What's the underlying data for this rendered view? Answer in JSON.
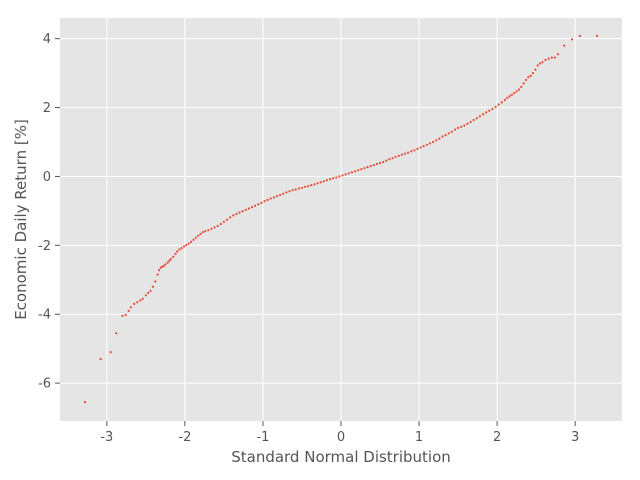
{
  "chart_data": {
    "type": "scatter",
    "title": "",
    "xlabel": "Standard Normal Distribution",
    "ylabel": "Economic Daily Return [%]",
    "xlim": [
      -3.6,
      3.6
    ],
    "ylim": [
      -7.1,
      4.6
    ],
    "xticks": [
      -3,
      -2,
      -1,
      0,
      1,
      2,
      3
    ],
    "yticks": [
      -6,
      -4,
      -2,
      0,
      2,
      4
    ],
    "grid": true,
    "legend": "none",
    "colors": {
      "background": "#e5e5e5",
      "grid": "#ffffff",
      "points": "#e24a33",
      "text": "#555555"
    },
    "series": [
      {
        "name": "",
        "x": [
          -3.28,
          -3.08,
          -2.95,
          -2.88,
          -2.8,
          -2.76,
          -2.72,
          -2.69,
          -2.65,
          -2.61,
          -2.57,
          -2.54,
          -2.5,
          -2.47,
          -2.44,
          -2.41,
          -2.38,
          -2.35,
          -2.33,
          -2.31,
          -2.29,
          -2.27,
          -2.25,
          -2.22,
          -2.2,
          -2.18,
          -2.15,
          -2.12,
          -2.1,
          -2.07,
          -2.04,
          -2.01,
          -1.98,
          -1.95,
          -1.92,
          -1.89,
          -1.86,
          -1.83,
          -1.8,
          -1.77,
          -1.74,
          -1.7,
          -1.66,
          -1.62,
          -1.58,
          -1.54,
          -1.5,
          -1.46,
          -1.42,
          -1.38,
          -1.34,
          -1.3,
          -1.26,
          -1.22,
          -1.18,
          -1.14,
          -1.1,
          -1.06,
          -1.02,
          -0.98,
          -0.94,
          -0.9,
          -0.86,
          -0.82,
          -0.78,
          -0.74,
          -0.7,
          -0.66,
          -0.62,
          -0.58,
          -0.54,
          -0.5,
          -0.46,
          -0.42,
          -0.38,
          -0.34,
          -0.3,
          -0.26,
          -0.22,
          -0.18,
          -0.14,
          -0.1,
          -0.06,
          -0.02,
          0.02,
          0.06,
          0.1,
          0.14,
          0.18,
          0.22,
          0.26,
          0.3,
          0.34,
          0.38,
          0.42,
          0.46,
          0.5,
          0.54,
          0.58,
          0.62,
          0.66,
          0.7,
          0.74,
          0.78,
          0.82,
          0.86,
          0.9,
          0.94,
          0.98,
          1.02,
          1.06,
          1.1,
          1.14,
          1.18,
          1.22,
          1.26,
          1.3,
          1.34,
          1.38,
          1.42,
          1.46,
          1.5,
          1.54,
          1.58,
          1.62,
          1.66,
          1.7,
          1.74,
          1.78,
          1.82,
          1.86,
          1.9,
          1.94,
          1.98,
          2.02,
          2.06,
          2.1,
          2.13,
          2.16,
          2.19,
          2.22,
          2.25,
          2.28,
          2.31,
          2.34,
          2.37,
          2.4,
          2.43,
          2.46,
          2.49,
          2.52,
          2.55,
          2.58,
          2.62,
          2.66,
          2.7,
          2.74,
          2.78,
          2.86,
          2.96,
          3.06,
          3.28
        ],
        "y": [
          -6.55,
          -5.3,
          -5.1,
          -4.55,
          -4.05,
          -4.02,
          -3.9,
          -3.8,
          -3.7,
          -3.65,
          -3.6,
          -3.55,
          -3.45,
          -3.38,
          -3.32,
          -3.2,
          -3.05,
          -2.85,
          -2.72,
          -2.65,
          -2.62,
          -2.6,
          -2.55,
          -2.5,
          -2.45,
          -2.4,
          -2.33,
          -2.25,
          -2.18,
          -2.12,
          -2.08,
          -2.03,
          -1.99,
          -1.95,
          -1.9,
          -1.84,
          -1.78,
          -1.72,
          -1.67,
          -1.62,
          -1.59,
          -1.56,
          -1.52,
          -1.48,
          -1.44,
          -1.38,
          -1.32,
          -1.26,
          -1.19,
          -1.13,
          -1.09,
          -1.05,
          -1.01,
          -0.97,
          -0.93,
          -0.89,
          -0.85,
          -0.81,
          -0.77,
          -0.72,
          -0.68,
          -0.64,
          -0.61,
          -0.57,
          -0.54,
          -0.5,
          -0.46,
          -0.43,
          -0.4,
          -0.38,
          -0.35,
          -0.33,
          -0.3,
          -0.28,
          -0.25,
          -0.23,
          -0.2,
          -0.17,
          -0.14,
          -0.11,
          -0.08,
          -0.05,
          -0.03,
          0.0,
          0.03,
          0.06,
          0.09,
          0.12,
          0.15,
          0.18,
          0.21,
          0.24,
          0.27,
          0.3,
          0.33,
          0.36,
          0.39,
          0.42,
          0.46,
          0.5,
          0.53,
          0.57,
          0.6,
          0.63,
          0.66,
          0.69,
          0.73,
          0.76,
          0.8,
          0.84,
          0.88,
          0.92,
          0.96,
          1.0,
          1.05,
          1.1,
          1.16,
          1.2,
          1.25,
          1.3,
          1.36,
          1.41,
          1.44,
          1.48,
          1.53,
          1.58,
          1.64,
          1.69,
          1.75,
          1.81,
          1.86,
          1.91,
          1.96,
          2.02,
          2.09,
          2.15,
          2.22,
          2.28,
          2.33,
          2.37,
          2.42,
          2.47,
          2.52,
          2.6,
          2.7,
          2.8,
          2.88,
          2.92,
          3.0,
          3.1,
          3.22,
          3.28,
          3.32,
          3.38,
          3.42,
          3.45,
          3.45,
          3.55,
          3.8,
          3.98,
          4.08,
          4.08
        ]
      }
    ]
  }
}
